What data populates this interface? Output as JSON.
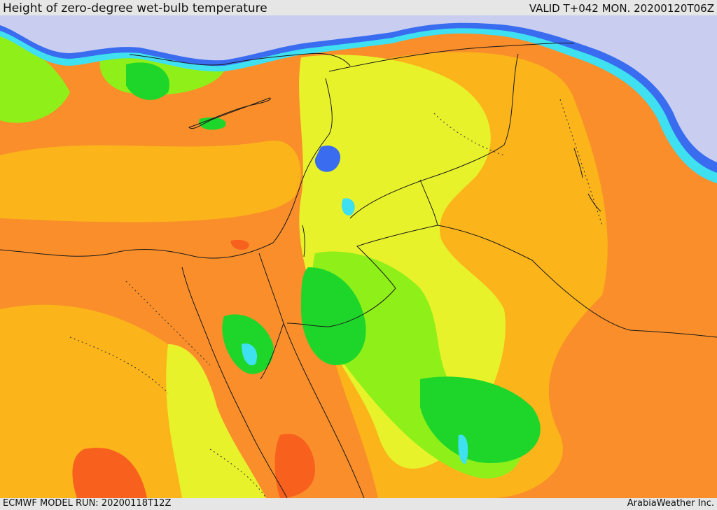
{
  "header": {
    "title": "Height of zero-degree wet-bulb temperature",
    "valid": "VALID T+042 MON. 20200120T06Z"
  },
  "footer": {
    "model_run": "ECMWF MODEL RUN: 20200118T12Z",
    "credit": "ArabiaWeather Inc."
  },
  "palette": {
    "sea_cold": "#c9cdf0",
    "blue": "#3a6cf0",
    "cyan": "#3fe0f0",
    "teal": "#22c6a0",
    "green": "#1ed62a",
    "light_green": "#8ef018",
    "yellow_green": "#e8f22a",
    "yellow": "#f6d21a",
    "orange_light": "#fbb41a",
    "orange": "#f98e2a",
    "red_orange": "#f8601e",
    "border": "#1a1a1a"
  }
}
